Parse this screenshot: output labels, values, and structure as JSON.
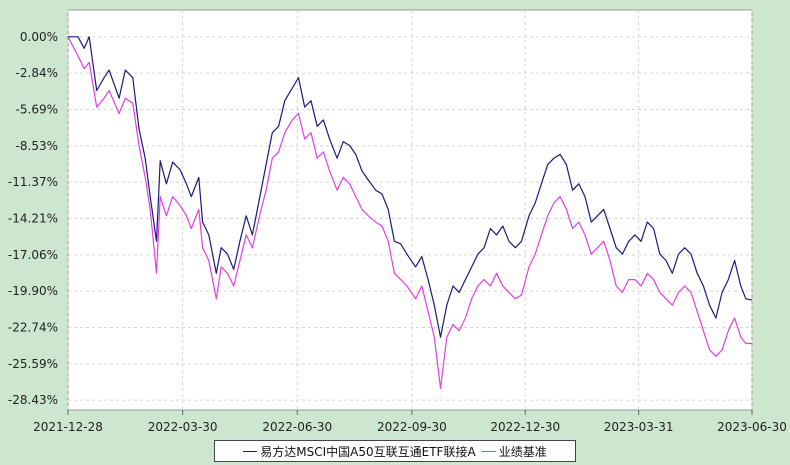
{
  "chart_data": {
    "type": "line",
    "title": "",
    "xlabel": "",
    "ylabel": "",
    "x_ticks": [
      "2021-12-28",
      "2022-03-30",
      "2022-06-30",
      "2022-09-30",
      "2022-12-30",
      "2023-03-31",
      "2023-06-30"
    ],
    "y_ticks": [
      "0.00%",
      "-2.84%",
      "-5.69%",
      "-8.53%",
      "-11.37%",
      "-14.21%",
      "-17.06%",
      "-19.90%",
      "-22.74%",
      "-25.59%",
      "-28.43%"
    ],
    "ylim": [
      -29.2,
      2.1
    ],
    "xlim": [
      "2021-12-28",
      "2023-06-30"
    ],
    "grid": true,
    "legend_position": "bottom",
    "series": [
      {
        "name": "易方达MSCI中国A50互联互通ETF联接A",
        "color": "#1a1a7a",
        "points": [
          [
            "2021-12-28",
            0.0
          ],
          [
            "2022-01-05",
            0.0
          ],
          [
            "2022-01-10",
            -0.9
          ],
          [
            "2022-01-14",
            0.0
          ],
          [
            "2022-01-20",
            -4.2
          ],
          [
            "2022-01-26",
            -3.2
          ],
          [
            "2022-01-30",
            -2.6
          ],
          [
            "2022-02-07",
            -4.8
          ],
          [
            "2022-02-12",
            -2.6
          ],
          [
            "2022-02-18",
            -3.2
          ],
          [
            "2022-02-23",
            -7.2
          ],
          [
            "2022-02-28",
            -9.5
          ],
          [
            "2022-03-04",
            -12.5
          ],
          [
            "2022-03-09",
            -16.0
          ],
          [
            "2022-03-12",
            -9.7
          ],
          [
            "2022-03-17",
            -11.5
          ],
          [
            "2022-03-22",
            -9.8
          ],
          [
            "2022-03-28",
            -10.4
          ],
          [
            "2022-04-02",
            -11.5
          ],
          [
            "2022-04-06",
            -12.5
          ],
          [
            "2022-04-12",
            -11.0
          ],
          [
            "2022-04-15",
            -14.5
          ],
          [
            "2022-04-20",
            -15.5
          ],
          [
            "2022-04-26",
            -18.5
          ],
          [
            "2022-04-30",
            -16.5
          ],
          [
            "2022-05-05",
            -17.0
          ],
          [
            "2022-05-10",
            -18.2
          ],
          [
            "2022-05-15",
            -16.0
          ],
          [
            "2022-05-20",
            -14.0
          ],
          [
            "2022-05-25",
            -15.5
          ],
          [
            "2022-06-01",
            -12.0
          ],
          [
            "2022-06-05",
            -10.0
          ],
          [
            "2022-06-10",
            -7.5
          ],
          [
            "2022-06-15",
            -7.0
          ],
          [
            "2022-06-20",
            -5.0
          ],
          [
            "2022-06-26",
            -4.0
          ],
          [
            "2022-07-01",
            -3.2
          ],
          [
            "2022-07-06",
            -5.5
          ],
          [
            "2022-07-11",
            -5.0
          ],
          [
            "2022-07-16",
            -7.0
          ],
          [
            "2022-07-21",
            -6.5
          ],
          [
            "2022-07-26",
            -8.0
          ],
          [
            "2022-08-01",
            -9.5
          ],
          [
            "2022-08-06",
            -8.2
          ],
          [
            "2022-08-11",
            -8.5
          ],
          [
            "2022-08-16",
            -9.2
          ],
          [
            "2022-08-21",
            -10.5
          ],
          [
            "2022-08-26",
            -11.2
          ],
          [
            "2022-09-01",
            -12.0
          ],
          [
            "2022-09-06",
            -12.3
          ],
          [
            "2022-09-11",
            -13.5
          ],
          [
            "2022-09-16",
            -16.0
          ],
          [
            "2022-09-21",
            -16.2
          ],
          [
            "2022-09-26",
            -17.0
          ],
          [
            "2022-10-03",
            -18.0
          ],
          [
            "2022-10-08",
            -17.2
          ],
          [
            "2022-10-13",
            -19.0
          ],
          [
            "2022-10-18",
            -21.0
          ],
          [
            "2022-10-23",
            -23.5
          ],
          [
            "2022-10-28",
            -21.0
          ],
          [
            "2022-11-02",
            -19.5
          ],
          [
            "2022-11-07",
            -20.0
          ],
          [
            "2022-11-12",
            -19.0
          ],
          [
            "2022-11-17",
            -18.0
          ],
          [
            "2022-11-22",
            -17.0
          ],
          [
            "2022-11-27",
            -16.5
          ],
          [
            "2022-12-02",
            -15.0
          ],
          [
            "2022-12-07",
            -15.5
          ],
          [
            "2022-12-12",
            -14.8
          ],
          [
            "2022-12-17",
            -16.0
          ],
          [
            "2022-12-22",
            -16.5
          ],
          [
            "2022-12-27",
            -16.0
          ],
          [
            "2023-01-02",
            -14.0
          ],
          [
            "2023-01-07",
            -13.0
          ],
          [
            "2023-01-12",
            -11.5
          ],
          [
            "2023-01-17",
            -10.0
          ],
          [
            "2023-01-22",
            -9.5
          ],
          [
            "2023-01-27",
            -9.2
          ],
          [
            "2023-02-01",
            -10.0
          ],
          [
            "2023-02-06",
            -12.0
          ],
          [
            "2023-02-11",
            -11.5
          ],
          [
            "2023-02-16",
            -12.5
          ],
          [
            "2023-02-21",
            -14.5
          ],
          [
            "2023-02-26",
            -14.0
          ],
          [
            "2023-03-03",
            -13.5
          ],
          [
            "2023-03-08",
            -15.0
          ],
          [
            "2023-03-13",
            -16.5
          ],
          [
            "2023-03-18",
            -17.0
          ],
          [
            "2023-03-23",
            -16.0
          ],
          [
            "2023-03-28",
            -15.5
          ],
          [
            "2023-04-02",
            -16.0
          ],
          [
            "2023-04-07",
            -14.5
          ],
          [
            "2023-04-12",
            -15.0
          ],
          [
            "2023-04-17",
            -17.0
          ],
          [
            "2023-04-22",
            -17.5
          ],
          [
            "2023-04-27",
            -18.5
          ],
          [
            "2023-05-02",
            -17.0
          ],
          [
            "2023-05-07",
            -16.5
          ],
          [
            "2023-05-12",
            -17.0
          ],
          [
            "2023-05-17",
            -18.5
          ],
          [
            "2023-05-22",
            -19.5
          ],
          [
            "2023-05-27",
            -21.0
          ],
          [
            "2023-06-01",
            -22.0
          ],
          [
            "2023-06-06",
            -20.0
          ],
          [
            "2023-06-11",
            -19.0
          ],
          [
            "2023-06-16",
            -17.5
          ],
          [
            "2023-06-21",
            -19.5
          ],
          [
            "2023-06-25",
            -20.5
          ],
          [
            "2023-06-30",
            -20.6
          ]
        ]
      },
      {
        "name": "业绩基准",
        "color": "#e040e0",
        "points": [
          [
            "2021-12-28",
            0.0
          ],
          [
            "2022-01-05",
            -1.5
          ],
          [
            "2022-01-10",
            -2.5
          ],
          [
            "2022-01-14",
            -2.0
          ],
          [
            "2022-01-20",
            -5.5
          ],
          [
            "2022-01-26",
            -4.8
          ],
          [
            "2022-01-30",
            -4.2
          ],
          [
            "2022-02-07",
            -6.0
          ],
          [
            "2022-02-12",
            -4.8
          ],
          [
            "2022-02-18",
            -5.2
          ],
          [
            "2022-02-23",
            -8.5
          ],
          [
            "2022-02-28",
            -11.0
          ],
          [
            "2022-03-04",
            -13.5
          ],
          [
            "2022-03-09",
            -18.5
          ],
          [
            "2022-03-12",
            -12.5
          ],
          [
            "2022-03-17",
            -14.0
          ],
          [
            "2022-03-22",
            -12.5
          ],
          [
            "2022-03-28",
            -13.2
          ],
          [
            "2022-04-02",
            -14.0
          ],
          [
            "2022-04-06",
            -15.0
          ],
          [
            "2022-04-12",
            -13.5
          ],
          [
            "2022-04-15",
            -16.5
          ],
          [
            "2022-04-20",
            -17.5
          ],
          [
            "2022-04-26",
            -20.5
          ],
          [
            "2022-04-30",
            -18.0
          ],
          [
            "2022-05-05",
            -18.5
          ],
          [
            "2022-05-10",
            -19.5
          ],
          [
            "2022-05-15",
            -17.5
          ],
          [
            "2022-05-20",
            -15.5
          ],
          [
            "2022-05-25",
            -16.5
          ],
          [
            "2022-06-01",
            -13.5
          ],
          [
            "2022-06-05",
            -12.0
          ],
          [
            "2022-06-10",
            -9.5
          ],
          [
            "2022-06-15",
            -9.0
          ],
          [
            "2022-06-20",
            -7.5
          ],
          [
            "2022-06-26",
            -6.5
          ],
          [
            "2022-07-01",
            -6.0
          ],
          [
            "2022-07-06",
            -8.0
          ],
          [
            "2022-07-11",
            -7.5
          ],
          [
            "2022-07-16",
            -9.5
          ],
          [
            "2022-07-21",
            -9.0
          ],
          [
            "2022-07-26",
            -10.5
          ],
          [
            "2022-08-01",
            -12.0
          ],
          [
            "2022-08-06",
            -11.0
          ],
          [
            "2022-08-11",
            -11.5
          ],
          [
            "2022-08-16",
            -12.5
          ],
          [
            "2022-08-21",
            -13.5
          ],
          [
            "2022-08-26",
            -14.0
          ],
          [
            "2022-09-01",
            -14.5
          ],
          [
            "2022-09-06",
            -14.8
          ],
          [
            "2022-09-11",
            -16.0
          ],
          [
            "2022-09-16",
            -18.5
          ],
          [
            "2022-09-21",
            -19.0
          ],
          [
            "2022-09-26",
            -19.5
          ],
          [
            "2022-10-03",
            -20.5
          ],
          [
            "2022-10-08",
            -19.5
          ],
          [
            "2022-10-13",
            -21.5
          ],
          [
            "2022-10-18",
            -23.5
          ],
          [
            "2022-10-23",
            -27.5
          ],
          [
            "2022-10-28",
            -23.5
          ],
          [
            "2022-11-02",
            -22.5
          ],
          [
            "2022-11-07",
            -23.0
          ],
          [
            "2022-11-12",
            -22.0
          ],
          [
            "2022-11-17",
            -20.5
          ],
          [
            "2022-11-22",
            -19.5
          ],
          [
            "2022-11-27",
            -19.0
          ],
          [
            "2022-12-02",
            -19.5
          ],
          [
            "2022-12-07",
            -18.5
          ],
          [
            "2022-12-12",
            -19.5
          ],
          [
            "2022-12-17",
            -20.0
          ],
          [
            "2022-12-22",
            -20.5
          ],
          [
            "2022-12-27",
            -20.2
          ],
          [
            "2023-01-02",
            -18.0
          ],
          [
            "2023-01-07",
            -17.0
          ],
          [
            "2023-01-12",
            -15.5
          ],
          [
            "2023-01-17",
            -14.0
          ],
          [
            "2023-01-22",
            -13.0
          ],
          [
            "2023-01-27",
            -12.5
          ],
          [
            "2023-02-01",
            -13.5
          ],
          [
            "2023-02-06",
            -15.0
          ],
          [
            "2023-02-11",
            -14.5
          ],
          [
            "2023-02-16",
            -15.5
          ],
          [
            "2023-02-21",
            -17.0
          ],
          [
            "2023-02-26",
            -16.5
          ],
          [
            "2023-03-03",
            -16.0
          ],
          [
            "2023-03-08",
            -17.5
          ],
          [
            "2023-03-13",
            -19.5
          ],
          [
            "2023-03-18",
            -20.0
          ],
          [
            "2023-03-23",
            -19.0
          ],
          [
            "2023-03-28",
            -19.0
          ],
          [
            "2023-04-02",
            -19.5
          ],
          [
            "2023-04-07",
            -18.5
          ],
          [
            "2023-04-12",
            -19.0
          ],
          [
            "2023-04-17",
            -20.0
          ],
          [
            "2023-04-22",
            -20.5
          ],
          [
            "2023-04-27",
            -21.0
          ],
          [
            "2023-05-02",
            -20.0
          ],
          [
            "2023-05-07",
            -19.5
          ],
          [
            "2023-05-12",
            -20.0
          ],
          [
            "2023-05-17",
            -21.5
          ],
          [
            "2023-05-22",
            -23.0
          ],
          [
            "2023-05-27",
            -24.5
          ],
          [
            "2023-06-01",
            -25.0
          ],
          [
            "2023-06-06",
            -24.5
          ],
          [
            "2023-06-11",
            -23.0
          ],
          [
            "2023-06-16",
            -22.0
          ],
          [
            "2023-06-21",
            -23.5
          ],
          [
            "2023-06-25",
            -24.0
          ],
          [
            "2023-06-30",
            -24.0
          ]
        ]
      }
    ]
  },
  "legend": {
    "items": [
      {
        "label": "易方达MSCI中国A50互联互通ETF联接A",
        "color": "#1a1a7a"
      },
      {
        "label": "业绩基准",
        "color": "#e040e0"
      }
    ]
  }
}
